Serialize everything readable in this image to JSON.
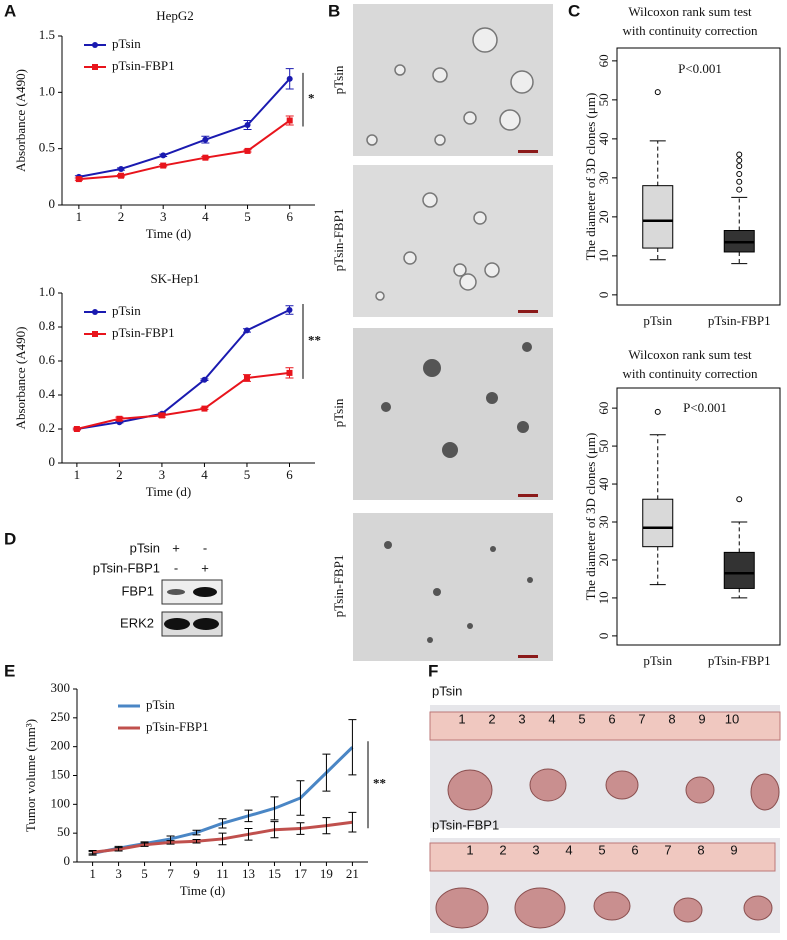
{
  "panel_labels": [
    "A",
    "B",
    "C",
    "D",
    "E",
    "F"
  ],
  "chart_data": [
    {
      "type": "line",
      "title": "HepG2",
      "x": [
        1,
        2,
        3,
        4,
        5,
        6
      ],
      "xlim": [
        0.6,
        6.6
      ],
      "xticks": [
        1,
        2,
        3,
        4,
        5,
        6
      ],
      "ylim": [
        0,
        1.5
      ],
      "yticks": [
        0,
        0.5,
        {
          "value": 1,
          "label": "1.0"
        },
        1.5
      ],
      "xlabel": "Time (d)",
      "ylabel": "Absorbance (A490)",
      "annotation": "*",
      "series": [
        {
          "name": "pTsin",
          "color": "#1a1ab0",
          "marker": "circle",
          "values": [
            0.25,
            0.32,
            0.44,
            0.58,
            0.71,
            1.12
          ],
          "errors": [
            0.01,
            0.01,
            0.01,
            0.03,
            0.04,
            0.09
          ]
        },
        {
          "name": "pTsin-FBP1",
          "color": "#e8141c",
          "marker": "square",
          "values": [
            0.23,
            0.26,
            0.35,
            0.42,
            0.48,
            0.75
          ],
          "errors": [
            0.01,
            0.01,
            0.01,
            0.01,
            0.01,
            0.04
          ]
        }
      ]
    },
    {
      "type": "line",
      "title": "SK-Hep1",
      "x": [
        1,
        2,
        3,
        4,
        5,
        6
      ],
      "xlim": [
        0.65,
        6.6
      ],
      "xticks": [
        1,
        2,
        3,
        4,
        5,
        6
      ],
      "ylim": [
        0,
        1
      ],
      "yticks": [
        0,
        0.2,
        0.4,
        0.6,
        0.8,
        {
          "value": 1,
          "label": "1.0"
        }
      ],
      "xlabel": "Time (d)",
      "ylabel": "Absorbance (A490)",
      "annotation": "**",
      "series": [
        {
          "name": "pTsin",
          "color": "#1a1ab0",
          "marker": "circle",
          "values": [
            0.2,
            0.24,
            0.29,
            0.49,
            0.78,
            0.9
          ],
          "errors": [
            0.005,
            0.005,
            0.005,
            0.005,
            0.01,
            0.025
          ]
        },
        {
          "name": "pTsin-FBP1",
          "color": "#e8141c",
          "marker": "square",
          "values": [
            0.2,
            0.26,
            0.28,
            0.32,
            0.5,
            0.53
          ],
          "errors": [
            0.005,
            0.01,
            0.01,
            0.005,
            0.02,
            0.03
          ]
        }
      ]
    },
    {
      "type": "box",
      "title": [
        "Wilcoxon rank sum test",
        "with continuity correction"
      ],
      "annotation": "P<0.001",
      "ylabel": "The diameter of 3D clones (μm)",
      "ylim": [
        -2.6,
        63.3
      ],
      "yticks": [
        0,
        10,
        20,
        30,
        40,
        50,
        60
      ],
      "categories": [
        "pTsin",
        "pTsin-FBP1"
      ],
      "boxes": [
        {
          "color": "#d9d9d9",
          "whisker_low": 9,
          "q1": 12,
          "median": 19,
          "q3": 28,
          "whisker_high": 39.5,
          "outliers": [
            52
          ]
        },
        {
          "color": "#333333",
          "whisker_low": 8,
          "q1": 11,
          "median": 13.5,
          "q3": 16.5,
          "whisker_high": 25,
          "outliers": [
            27,
            29,
            31,
            33,
            34.5,
            36
          ]
        }
      ]
    },
    {
      "type": "box",
      "title": [
        "Wilcoxon rank sum test",
        "with continuity correction"
      ],
      "annotation": "P<0.001",
      "ylabel": "The diameter of 3D clones (μm)",
      "ylim": [
        -2.4,
        65.3
      ],
      "yticks": [
        0,
        10,
        20,
        30,
        40,
        50,
        60
      ],
      "categories": [
        "pTsin",
        "pTsin-FBP1"
      ],
      "boxes": [
        {
          "color": "#d9d9d9",
          "whisker_low": 13.5,
          "q1": 23.5,
          "median": 28.5,
          "q3": 36,
          "whisker_high": 53,
          "outliers": [
            59
          ]
        },
        {
          "color": "#333333",
          "whisker_low": 10,
          "q1": 12.5,
          "median": 16.5,
          "q3": 22,
          "whisker_high": 30,
          "outliers": [
            36
          ]
        }
      ]
    },
    {
      "type": "line",
      "x": [
        1,
        3,
        5,
        7,
        9,
        11,
        13,
        15,
        17,
        19,
        21
      ],
      "xlim": [
        -0.2,
        22.2
      ],
      "xticks": [
        1,
        3,
        5,
        7,
        9,
        11,
        13,
        15,
        17,
        19,
        21
      ],
      "ylim": [
        0,
        300
      ],
      "yticks": [
        0,
        50,
        100,
        150,
        200,
        250,
        300
      ],
      "xlabel": "Time (d)",
      "ylabel": "Tumor volume (mm³)",
      "annotation": "**",
      "series": [
        {
          "name": "pTsin",
          "color": "#4a86c5",
          "marker": "none",
          "values": [
            15,
            24,
            32,
            40,
            51,
            67,
            80,
            93,
            111,
            155,
            199
          ],
          "errors": [
            3,
            3,
            3,
            5,
            4,
            8,
            10,
            20,
            30,
            32,
            48
          ]
        },
        {
          "name": "pTsin-FBP1",
          "color": "#c0504d",
          "marker": "none",
          "values": [
            17,
            22,
            30,
            34,
            36,
            40,
            48,
            56,
            58,
            63,
            69
          ],
          "errors": [
            3,
            3,
            3,
            3,
            3,
            10,
            10,
            14,
            10,
            14,
            17
          ]
        }
      ]
    }
  ],
  "panel_b": {
    "images": [
      {
        "label": "pTsin"
      },
      {
        "label": "pTsin-FBP1"
      },
      {
        "label": "pTsin"
      },
      {
        "label": "pTsin-FBP1"
      }
    ]
  },
  "panel_d": {
    "rows": [
      {
        "label": "pTsin",
        "marks": [
          "+",
          "-"
        ]
      },
      {
        "label": "pTsin-FBP1",
        "marks": [
          "-",
          "+"
        ]
      }
    ],
    "bands": [
      "FBP1",
      "ERK2"
    ]
  },
  "panel_f": {
    "groups": [
      {
        "label": "pTsin",
        "ruler": [
          1,
          2,
          3,
          4,
          5,
          6,
          7,
          8,
          9,
          10
        ]
      },
      {
        "label": "pTsin-FBP1",
        "ruler": [
          1,
          2,
          3,
          4,
          5,
          6,
          7,
          8,
          9
        ]
      }
    ]
  }
}
